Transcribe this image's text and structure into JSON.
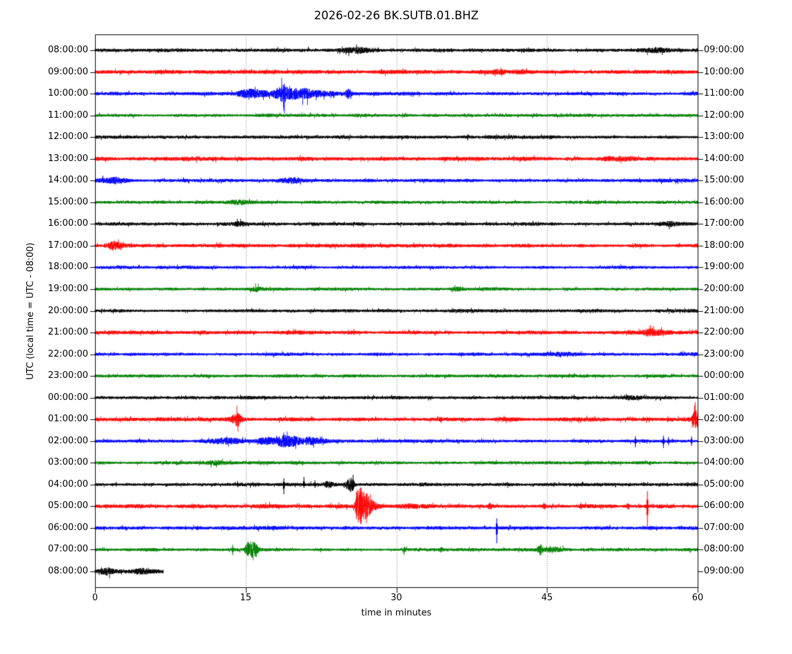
{
  "figure": {
    "title": "2026-02-26 BK.SUTB.01.BHZ",
    "xlabel": "time in minutes",
    "ylabel": "UTC (local time = UTC - 08:00)"
  },
  "chart_data": {
    "type": "line",
    "subtype": "seismogram-helicorder-dayplot",
    "title": "2026-02-26 BK.SUTB.01.BHZ",
    "date": "2026-02-26",
    "station_code": "BK.SUTB.01.BHZ",
    "xlabel": "time in minutes",
    "ylabel": "UTC (local time = UTC - 08:00)",
    "x_axis": {
      "range": [
        0,
        60
      ],
      "ticks": [
        0,
        15,
        30,
        45,
        60
      ],
      "tick_labels": [
        "0",
        "15",
        "30",
        "45",
        "60"
      ],
      "grid_minutes": [
        15,
        30,
        45
      ],
      "grid_style": "dotted"
    },
    "minutes_per_row": 60,
    "color_cycle": [
      "black",
      "red",
      "blue",
      "green"
    ],
    "colors": {
      "black": "#000000",
      "red": "#ff0000",
      "blue": "#0000ff",
      "green": "#008000"
    },
    "rows": [
      {
        "start": "08:00:00",
        "end": "09:00:00",
        "color": "black",
        "data_range": [
          0,
          60
        ],
        "base_noise": 2.2,
        "bursts": [
          {
            "t": 26.3,
            "amp": 3,
            "sigma": 2
          },
          {
            "t": 56.0,
            "amp": 2.2,
            "sigma": 1
          }
        ],
        "spikes": [
          {
            "t": 26.6,
            "up": 5,
            "down": 4
          },
          {
            "t": 28.2,
            "up": 4,
            "down": 3
          },
          {
            "t": 35.5,
            "up": 3,
            "down": 2
          }
        ]
      },
      {
        "start": "09:00:00",
        "end": "10:00:00",
        "color": "red",
        "data_range": [
          0,
          60
        ],
        "base_noise": 2.6,
        "bursts": [
          {
            "t": 41.0,
            "amp": 1.5,
            "sigma": 3
          }
        ],
        "spikes": []
      },
      {
        "start": "10:00:00",
        "end": "11:00:00",
        "color": "blue",
        "data_range": [
          0,
          60
        ],
        "base_noise": 2.2,
        "bursts": [
          {
            "t": 19.0,
            "amp": 2,
            "sigma": 5
          },
          {
            "t": 15.5,
            "amp": 3,
            "sigma": 1.5
          },
          {
            "t": 18.2,
            "amp": 6,
            "sigma": 0.5
          },
          {
            "t": 18.8,
            "amp": 9,
            "sigma": 0.3
          },
          {
            "t": 19.7,
            "amp": 4.5,
            "sigma": 0.7
          },
          {
            "t": 21.0,
            "amp": 3.5,
            "sigma": 1
          },
          {
            "t": 23.0,
            "amp": 2.5,
            "sigma": 1
          },
          {
            "t": 25.2,
            "amp": 4.5,
            "sigma": 0.3
          }
        ],
        "spikes": []
      },
      {
        "start": "11:00:00",
        "end": "12:00:00",
        "color": "green",
        "data_range": [
          0,
          60
        ],
        "base_noise": 2.0,
        "bursts": [],
        "spikes": []
      },
      {
        "start": "12:00:00",
        "end": "13:00:00",
        "color": "black",
        "data_range": [
          0,
          60
        ],
        "base_noise": 2.2,
        "bursts": [],
        "spikes": []
      },
      {
        "start": "13:00:00",
        "end": "14:00:00",
        "color": "red",
        "data_range": [
          0,
          60
        ],
        "base_noise": 2.5,
        "bursts": [
          {
            "t": 52.5,
            "amp": 2,
            "sigma": 2
          }
        ],
        "spikes": []
      },
      {
        "start": "14:00:00",
        "end": "15:00:00",
        "color": "blue",
        "data_range": [
          0,
          60
        ],
        "base_noise": 2.2,
        "bursts": [
          {
            "t": 1.5,
            "amp": 3,
            "sigma": 1.3
          },
          {
            "t": 19.8,
            "amp": 3,
            "sigma": 0.9
          }
        ],
        "spikes": []
      },
      {
        "start": "15:00:00",
        "end": "16:00:00",
        "color": "green",
        "data_range": [
          0,
          60
        ],
        "base_noise": 2.0,
        "bursts": [
          {
            "t": 14.5,
            "amp": 1.8,
            "sigma": 1
          }
        ],
        "spikes": []
      },
      {
        "start": "16:00:00",
        "end": "17:00:00",
        "color": "black",
        "data_range": [
          0,
          60
        ],
        "base_noise": 2.1,
        "bursts": [
          {
            "t": 14.5,
            "amp": 2.2,
            "sigma": 1
          },
          {
            "t": 57.5,
            "amp": 2.5,
            "sigma": 1.3
          }
        ],
        "spikes": []
      },
      {
        "start": "17:00:00",
        "end": "18:00:00",
        "color": "red",
        "data_range": [
          0,
          60
        ],
        "base_noise": 2.4,
        "bursts": [
          {
            "t": 1.9,
            "amp": 4,
            "sigma": 0.8
          }
        ],
        "spikes": []
      },
      {
        "start": "18:00:00",
        "end": "19:00:00",
        "color": "blue",
        "data_range": [
          0,
          60
        ],
        "base_noise": 2.0,
        "bursts": [],
        "spikes": []
      },
      {
        "start": "19:00:00",
        "end": "20:00:00",
        "color": "green",
        "data_range": [
          0,
          60
        ],
        "base_noise": 2.0,
        "bursts": [
          {
            "t": 16.0,
            "amp": 2,
            "sigma": 0.6
          },
          {
            "t": 36.0,
            "amp": 2,
            "sigma": 0.5
          }
        ],
        "spikes": []
      },
      {
        "start": "20:00:00",
        "end": "21:00:00",
        "color": "black",
        "data_range": [
          0,
          60
        ],
        "base_noise": 2.1,
        "bursts": [],
        "spikes": []
      },
      {
        "start": "21:00:00",
        "end": "22:00:00",
        "color": "red",
        "data_range": [
          0,
          60
        ],
        "base_noise": 2.4,
        "bursts": [
          {
            "t": 55.0,
            "amp": 2.5,
            "sigma": 1.6
          }
        ],
        "spikes": []
      },
      {
        "start": "22:00:00",
        "end": "23:00:00",
        "color": "blue",
        "data_range": [
          0,
          60
        ],
        "base_noise": 2.0,
        "bursts": [
          {
            "t": 47.0,
            "amp": 1.8,
            "sigma": 1.5
          }
        ],
        "spikes": []
      },
      {
        "start": "23:00:00",
        "end": "00:00:00",
        "color": "green",
        "data_range": [
          0,
          60
        ],
        "base_noise": 2.0,
        "bursts": [],
        "spikes": []
      },
      {
        "start": "00:00:00",
        "end": "01:00:00",
        "color": "black",
        "data_range": [
          0,
          60
        ],
        "base_noise": 2.1,
        "bursts": [
          {
            "t": 53.5,
            "amp": 2,
            "sigma": 0.8
          }
        ],
        "spikes": []
      },
      {
        "start": "01:00:00",
        "end": "02:00:00",
        "color": "red",
        "data_range": [
          0,
          60
        ],
        "base_noise": 2.6,
        "bursts": [
          {
            "t": 14.1,
            "amp": 6.5,
            "sigma": 0.45
          },
          {
            "t": 59.8,
            "amp": 11,
            "sigma": 0.3
          }
        ],
        "spikes": []
      },
      {
        "start": "02:00:00",
        "end": "03:00:00",
        "color": "blue",
        "data_range": [
          0,
          60
        ],
        "base_noise": 2.2,
        "bursts": [
          {
            "t": 13.0,
            "amp": 2.5,
            "sigma": 1.5
          },
          {
            "t": 17.0,
            "amp": 4.5,
            "sigma": 1
          },
          {
            "t": 18.7,
            "amp": 6,
            "sigma": 0.6
          },
          {
            "t": 19.8,
            "amp": 5,
            "sigma": 0.7
          },
          {
            "t": 21.5,
            "amp": 3.5,
            "sigma": 1
          }
        ],
        "spikes": [
          {
            "t": 53.8,
            "up": 7,
            "down": 9
          },
          {
            "t": 56.6,
            "up": 8,
            "down": 10
          },
          {
            "t": 57.1,
            "up": 6,
            "down": 6
          },
          {
            "t": 59.4,
            "up": 7,
            "down": 7
          }
        ]
      },
      {
        "start": "03:00:00",
        "end": "04:00:00",
        "color": "green",
        "data_range": [
          0,
          60
        ],
        "base_noise": 2.0,
        "bursts": [
          {
            "t": 12.0,
            "amp": 2,
            "sigma": 0.8
          }
        ],
        "spikes": []
      },
      {
        "start": "04:00:00",
        "end": "05:00:00",
        "color": "black",
        "data_range": [
          0,
          60
        ],
        "base_noise": 2.2,
        "bursts": [
          {
            "t": 25.4,
            "amp": 11,
            "sigma": 0.35
          },
          {
            "t": 23.2,
            "amp": 3,
            "sigma": 0.4
          }
        ],
        "spikes": [
          {
            "t": 2.1,
            "up": 4,
            "down": 3
          },
          {
            "t": 14.2,
            "up": 5,
            "down": 4
          },
          {
            "t": 16.3,
            "up": 3,
            "down": 3
          },
          {
            "t": 18.8,
            "up": 9,
            "down": 14
          },
          {
            "t": 20.8,
            "up": 11,
            "down": 5
          },
          {
            "t": 21.9,
            "up": 6,
            "down": 5
          },
          {
            "t": 23.0,
            "up": 5,
            "down": 4
          },
          {
            "t": 23.5,
            "up": 4,
            "down": 5
          },
          {
            "t": 25.7,
            "up": 14,
            "down": 9
          },
          {
            "t": 48.5,
            "up": 3,
            "down": 3
          },
          {
            "t": 57.0,
            "up": 3,
            "down": 3
          }
        ]
      },
      {
        "start": "05:00:00",
        "end": "06:00:00",
        "color": "red",
        "data_range": [
          0,
          60
        ],
        "base_noise": 2.5,
        "bursts": [
          {
            "t": 26.15,
            "amp": 25,
            "attack": 0.22,
            "decay": 1.2
          },
          {
            "t": 31.5,
            "amp": 2,
            "sigma": 1.5
          },
          {
            "t": 39.3,
            "amp": 3,
            "sigma": 0.15
          },
          {
            "t": 44.7,
            "amp": 3.5,
            "sigma": 0.12
          },
          {
            "t": 53.1,
            "amp": 3,
            "sigma": 0.15
          }
        ],
        "spikes": [
          {
            "t": 48.4,
            "up": 5,
            "down": 5
          },
          {
            "t": 55.0,
            "up": 22,
            "down": 29
          }
        ]
      },
      {
        "start": "06:00:00",
        "end": "07:00:00",
        "color": "blue",
        "data_range": [
          0,
          60
        ],
        "base_noise": 2.2,
        "bursts": [],
        "spikes": [
          {
            "t": 40.0,
            "up": 14,
            "down": 22
          },
          {
            "t": 10.2,
            "up": 3,
            "down": 3
          }
        ]
      },
      {
        "start": "07:00:00",
        "end": "08:00:00",
        "color": "green",
        "data_range": [
          0,
          60
        ],
        "base_noise": 2.0,
        "bursts": [
          {
            "t": 15.15,
            "amp": 8,
            "sigma": 0.18
          },
          {
            "t": 15.55,
            "amp": 7,
            "sigma": 0.3
          },
          {
            "t": 16.0,
            "amp": 5.5,
            "sigma": 0.25
          },
          {
            "t": 30.8,
            "amp": 3,
            "sigma": 0.15
          },
          {
            "t": 34.5,
            "amp": 2.5,
            "sigma": 0.2
          },
          {
            "t": 44.3,
            "amp": 5.5,
            "sigma": 0.22
          },
          {
            "t": 46.0,
            "amp": 2.2,
            "sigma": 1.2
          }
        ],
        "spikes": [
          {
            "t": 13.7,
            "up": 7,
            "down": 8
          }
        ]
      },
      {
        "start": "08:00:00",
        "end": "09:00:00",
        "color": "black",
        "data_range": [
          0,
          6.8
        ],
        "base_noise": 2.5,
        "bursts": [
          {
            "t": 1.2,
            "amp": 3,
            "sigma": 0.7
          },
          {
            "t": 4.6,
            "amp": 2.8,
            "sigma": 0.8
          }
        ],
        "spikes": []
      }
    ]
  }
}
